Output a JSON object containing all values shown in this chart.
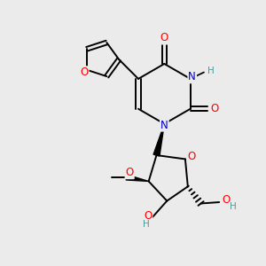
{
  "bg_color": "#ebebeb",
  "atom_colors": {
    "O": "#ff0000",
    "N": "#0000cc",
    "C": "#000000",
    "H": "#4a9a9a"
  },
  "figsize": [
    3.0,
    3.0
  ],
  "dpi": 100,
  "lw": 1.4
}
